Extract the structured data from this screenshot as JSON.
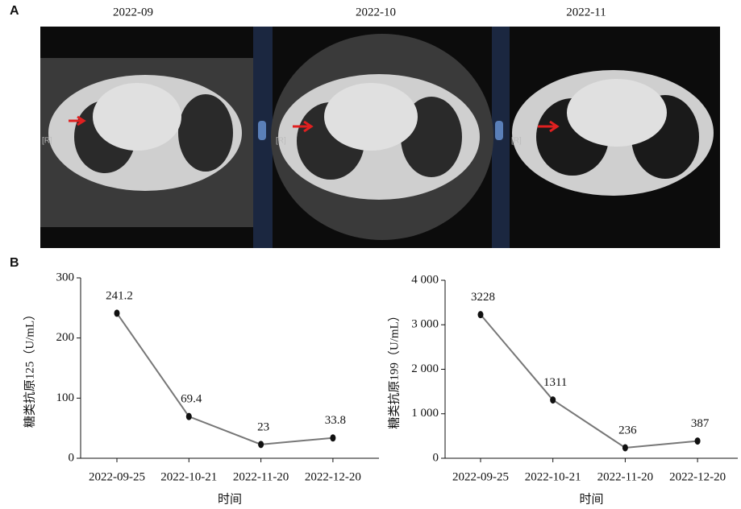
{
  "panel_labels": [
    "A",
    "B"
  ],
  "images": [
    {
      "label": "2022-09",
      "marker": "[R]"
    },
    {
      "label": "2022-10",
      "marker": "[R]"
    },
    {
      "label": "2022-11",
      "marker": "[R]"
    }
  ],
  "chart_data": [
    {
      "type": "line",
      "x_label": "时间",
      "y_label": "糖类抗原125（U/mL）",
      "categories": [
        "2022-09-25",
        "2022-10-21",
        "2022-11-20",
        "2022-12-20"
      ],
      "series": [
        {
          "color": "#777777",
          "values": [
            241.2,
            69.4,
            23,
            33.8
          ]
        }
      ],
      "ylim": [
        0,
        300
      ],
      "yticks": [
        0,
        100,
        200,
        300
      ]
    },
    {
      "type": "line",
      "x_label": "时间",
      "y_label": "糖类抗原199（U/mL）",
      "categories": [
        "2022-09-25",
        "2022-10-21",
        "2022-11-20",
        "2022-12-20"
      ],
      "series": [
        {
          "color": "#777777",
          "values": [
            3228,
            1311,
            236,
            387
          ]
        }
      ],
      "ylim": [
        0,
        4000
      ],
      "yticks": [
        0,
        {
          "value": 1000,
          "label": "1 000"
        },
        {
          "value": 2000,
          "label": "2 000"
        },
        {
          "value": 3000,
          "label": "3 000"
        },
        {
          "value": 4000,
          "label": "4 000"
        }
      ]
    }
  ]
}
